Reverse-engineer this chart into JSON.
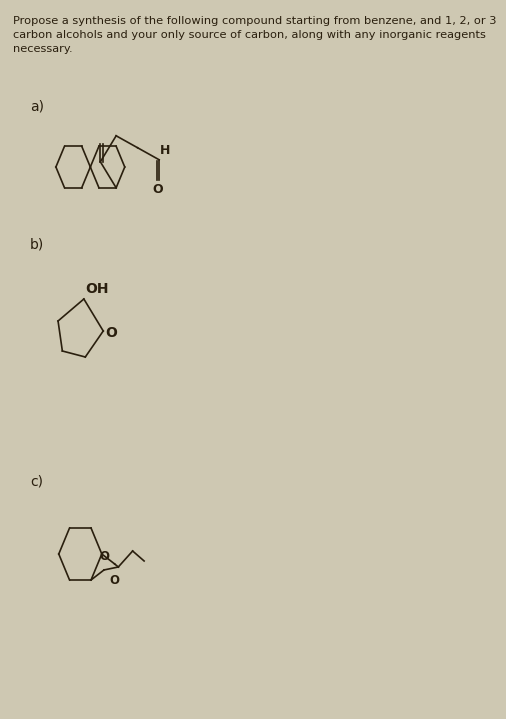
{
  "title_text": "Propose a synthesis of the following compound starting from benzene, and 1, 2, or 3\ncarbon alcohols and your only source of carbon, along with any inorganic reagents\nnecessary.",
  "bg_color": "#cec8b2",
  "text_color": "#2a1f0e",
  "label_a": "a)",
  "label_b": "b)",
  "label_c": "c)",
  "label_fontsize": 10,
  "title_fontsize": 8.2,
  "oh_label": "OH",
  "o_label": "O",
  "h_label": "H"
}
